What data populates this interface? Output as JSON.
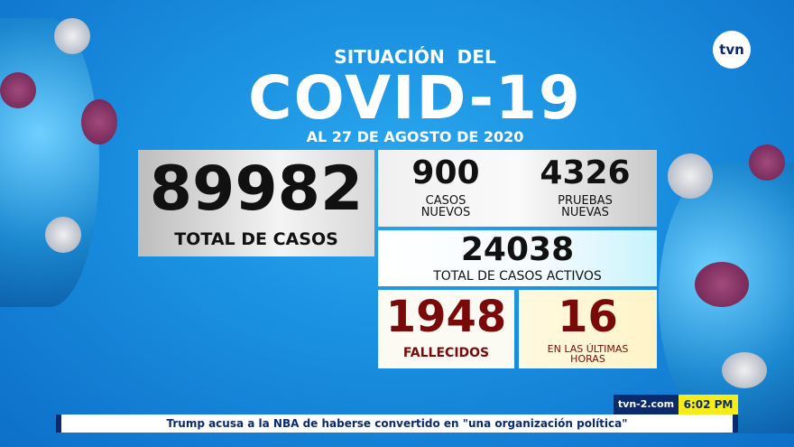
{
  "header": {
    "line1": "SITUACIÓN  DEL",
    "title": "COVID-19",
    "date": "AL 27 DE AGOSTO DE 2020"
  },
  "logo": "tvn",
  "stats": {
    "total": {
      "value": "89982",
      "label": "TOTAL DE CASOS"
    },
    "new_cases": {
      "value": "900",
      "label1": "CASOS",
      "label2": "NUEVOS"
    },
    "new_tests": {
      "value": "4326",
      "label1": "PRUEBAS",
      "label2": "NUEVAS"
    },
    "active": {
      "value": "24038",
      "label": "TOTAL DE CASOS ACTIVOS"
    },
    "deaths": {
      "value": "1948",
      "label": "FALLECIDOS"
    },
    "recent_deaths": {
      "value": "16",
      "label1": "EN LAS ÚLTIMAS",
      "label2": "HORAS"
    }
  },
  "ticker": {
    "site": "tvn-2.com",
    "time": "6:02 PM",
    "headline": "Trump acusa a la NBA de haberse convertido en \"una organización política\""
  },
  "colors": {
    "deaths": "#7a0a0a",
    "ticker_blue": "#0a2a6e",
    "time_bg": "#f5ec1a"
  }
}
